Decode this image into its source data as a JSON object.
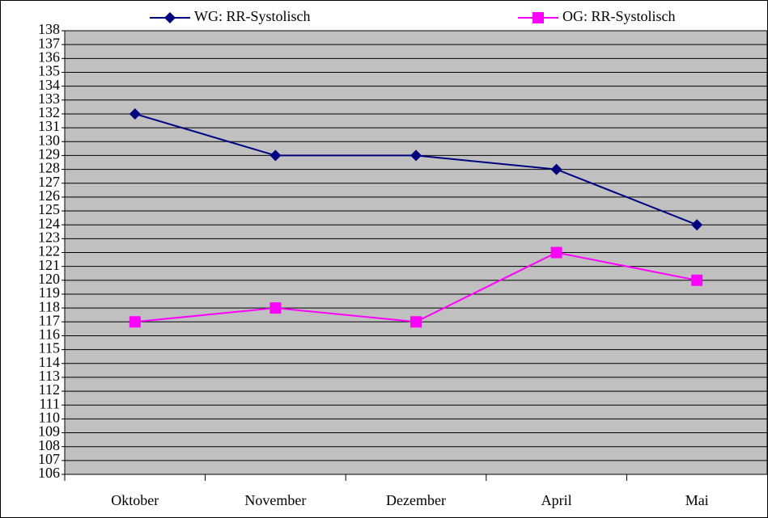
{
  "chart_data": {
    "type": "line",
    "categories": [
      "Oktober",
      "November",
      "Dezember",
      "April",
      "Mai"
    ],
    "series": [
      {
        "name": "WG: RR-Systolisch",
        "color": "#000080",
        "marker": "diamond",
        "values": [
          132,
          129,
          129,
          128,
          124
        ]
      },
      {
        "name": "OG: RR-Systolisch",
        "color": "#ff00ff",
        "marker": "square",
        "values": [
          117,
          118,
          117,
          122,
          120
        ]
      }
    ],
    "ylim": [
      106,
      138
    ],
    "yticks": [
      106,
      107,
      108,
      109,
      110,
      111,
      112,
      113,
      114,
      115,
      116,
      117,
      118,
      119,
      120,
      121,
      122,
      123,
      124,
      125,
      126,
      127,
      128,
      129,
      130,
      131,
      132,
      133,
      134,
      135,
      136,
      137,
      138
    ],
    "grid": true,
    "legend": "top",
    "plot_background": "#c0c0c0"
  }
}
